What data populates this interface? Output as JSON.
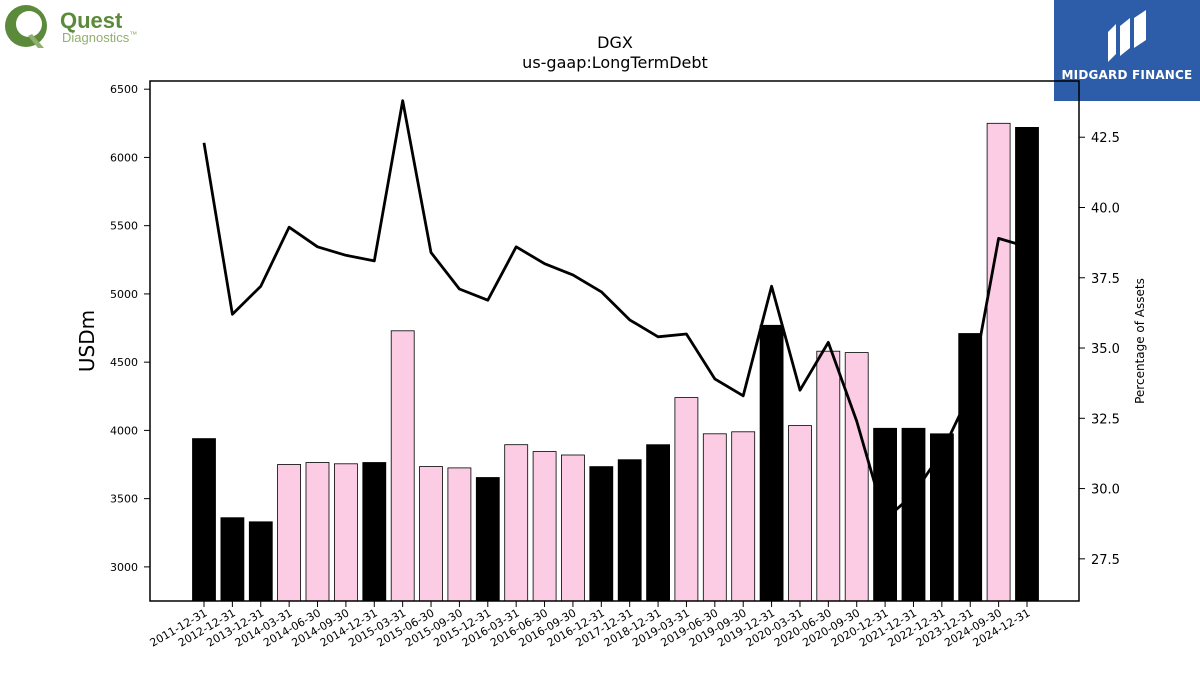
{
  "brand": {
    "left_logo": {
      "line1": "Quest",
      "line2": "Diagnostics",
      "tm": "™",
      "color_primary": "#5a8a3a",
      "color_secondary": "#8fb06e"
    },
    "right_logo": {
      "text": "MIDGARD FINANCE",
      "background": "#2d5ca8"
    }
  },
  "chart_data": {
    "type": "bar",
    "title": "DGX",
    "subtitle": "us-gaap:LongTermDebt",
    "xlabel": "",
    "ylabel": "USDm",
    "y2label": "Percentage of Assets",
    "ylim": [
      2750,
      6560
    ],
    "y2lim": [
      26.0,
      44.5
    ],
    "yticks": [
      3000,
      3500,
      4000,
      4500,
      5000,
      5500,
      6000,
      6500
    ],
    "y2ticks": [
      "27.5",
      "30.0",
      "32.5",
      "35.0",
      "37.5",
      "40.0",
      "42.5"
    ],
    "grid": false,
    "categories": [
      "2011-12-31",
      "2012-12-31",
      "2013-12-31",
      "2014-03-31",
      "2014-06-30",
      "2014-09-30",
      "2014-12-31",
      "2015-03-31",
      "2015-06-30",
      "2015-09-30",
      "2015-12-31",
      "2016-03-31",
      "2016-06-30",
      "2016-09-30",
      "2016-12-31",
      "2017-12-31",
      "2018-12-31",
      "2019-03-31",
      "2019-06-30",
      "2019-09-30",
      "2019-12-31",
      "2020-03-31",
      "2020-06-30",
      "2020-09-30",
      "2020-12-31",
      "2021-12-31",
      "2022-12-31",
      "2023-12-31",
      "2024-09-30",
      "2024-12-31"
    ],
    "series": [
      {
        "type": "bar",
        "axis": "left",
        "values": [
          3940,
          3360,
          3330,
          3750,
          3765,
          3755,
          3765,
          4730,
          3735,
          3725,
          3655,
          3895,
          3845,
          3820,
          3735,
          3785,
          3895,
          4240,
          3975,
          3990,
          4770,
          4035,
          4580,
          4570,
          4015,
          4015,
          3975,
          4710,
          6250,
          6220
        ],
        "colors": [
          "#000000",
          "#000000",
          "#000000",
          "#fbcce3",
          "#fbcce3",
          "#fbcce3",
          "#000000",
          "#fbcce3",
          "#fbcce3",
          "#fbcce3",
          "#000000",
          "#fbcce3",
          "#fbcce3",
          "#fbcce3",
          "#000000",
          "#000000",
          "#000000",
          "#fbcce3",
          "#fbcce3",
          "#fbcce3",
          "#000000",
          "#fbcce3",
          "#fbcce3",
          "#fbcce3",
          "#000000",
          "#000000",
          "#000000",
          "#000000",
          "#fbcce3",
          "#000000"
        ]
      },
      {
        "type": "line",
        "axis": "right",
        "values": [
          42.3,
          36.2,
          37.2,
          39.3,
          38.6,
          38.3,
          38.1,
          43.8,
          38.4,
          37.1,
          36.7,
          38.6,
          38.0,
          37.6,
          37.0,
          36.0,
          35.4,
          35.5,
          33.9,
          33.3,
          37.2,
          33.5,
          35.2,
          32.4,
          28.9,
          29.8,
          31.3,
          33.4,
          38.9,
          38.6
        ],
        "color": "#000000"
      }
    ]
  }
}
